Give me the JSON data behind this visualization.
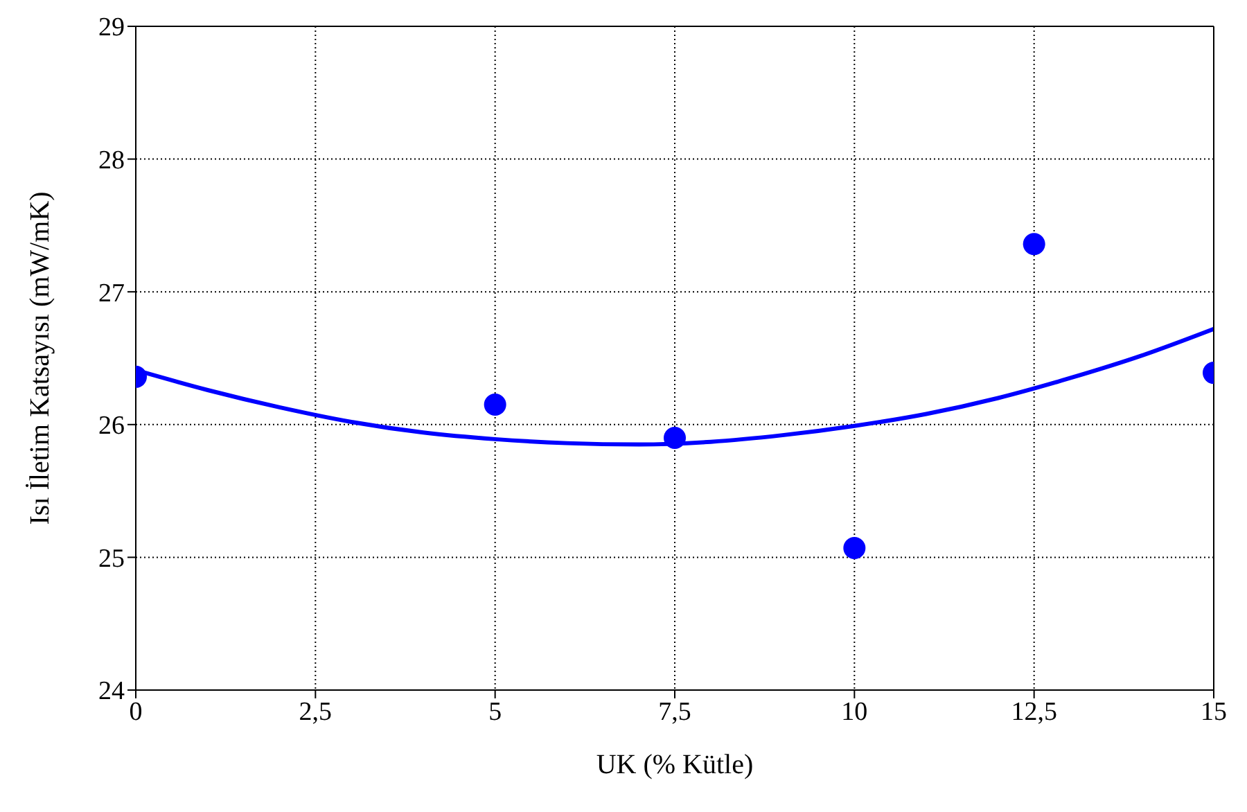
{
  "chart_data": {
    "type": "scatter",
    "xlabel": "UK (% Kütle)",
    "ylabel": "Isı İletim Katsayısı (mW/mK)",
    "xlim": [
      0,
      15
    ],
    "xticks": [
      0,
      {
        "value": 2.5,
        "label": "2,5"
      },
      5,
      {
        "value": 7.5,
        "label": "7,5"
      },
      10,
      {
        "value": 12.5,
        "label": "12,5"
      },
      15
    ],
    "ylim": [
      24,
      29
    ],
    "yticks": [
      24,
      25,
      26,
      27,
      28,
      29
    ],
    "grid": true,
    "series": [
      {
        "color": "#0000ff",
        "marker": "circle",
        "x": [
          0,
          5,
          7.5,
          10,
          12.5,
          15
        ],
        "values": [
          26.36,
          26.15,
          25.9,
          25.07,
          27.36,
          26.39
        ]
      },
      {
        "type": "line",
        "color": "#0000ff",
        "line_style": "solid",
        "x": [
          0,
          1,
          2,
          3,
          4,
          5,
          6,
          7,
          8,
          9,
          10,
          11,
          12,
          13,
          14,
          15
        ],
        "values": [
          26.41,
          26.26,
          26.13,
          26.02,
          25.94,
          25.89,
          25.86,
          25.85,
          25.87,
          25.92,
          25.99,
          26.08,
          26.2,
          26.35,
          26.52,
          26.72
        ]
      }
    ]
  }
}
